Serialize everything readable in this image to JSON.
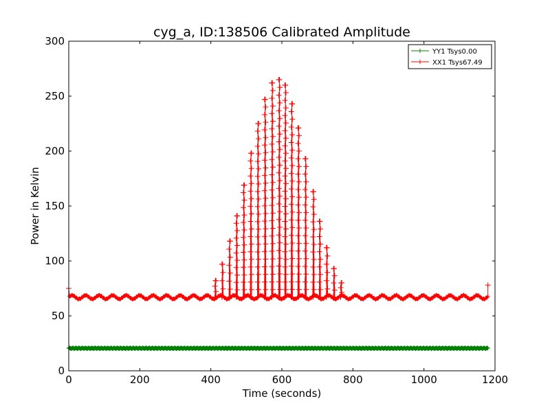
{
  "chart_data": {
    "type": "line",
    "title": "cyg_a, ID:138506 Calibrated Amplitude",
    "xlabel": "Time (seconds)",
    "ylabel": "Power in Kelvin",
    "xlim": [
      0,
      1200
    ],
    "ylim": [
      0,
      300
    ],
    "xticks": [
      0,
      200,
      400,
      600,
      800,
      1000,
      1200
    ],
    "yticks": [
      0,
      50,
      100,
      150,
      200,
      250,
      300
    ],
    "xtick_labels": [
      "0",
      "200",
      "400",
      "600",
      "800",
      "1000",
      "1200"
    ],
    "ytick_labels": [
      "0",
      "50",
      "100",
      "150",
      "200",
      "250",
      "300"
    ],
    "grid": false,
    "legend_position": "top-right",
    "marker": "+",
    "series": [
      {
        "name": "YY1 Tsys0.00",
        "color": "#008000",
        "x_start": 0,
        "x_end": 1180,
        "level": 20.5,
        "points": [
          [
            0,
            20.5
          ],
          [
            200,
            20.7
          ],
          [
            400,
            20.6
          ],
          [
            600,
            20.5
          ],
          [
            800,
            20.6
          ],
          [
            1000,
            20.5
          ],
          [
            1180,
            20.6
          ]
        ]
      },
      {
        "name": "XX1 Tsys67.49",
        "color": "#ff0000",
        "x_start": 0,
        "x_end": 1180,
        "baseline": 67,
        "start_value": 75,
        "end_value": 78,
        "peaks": [
          [
            413,
            82
          ],
          [
            433,
            97
          ],
          [
            453,
            118
          ],
          [
            473,
            141
          ],
          [
            493,
            169
          ],
          [
            513,
            198
          ],
          [
            533,
            225
          ],
          [
            553,
            247
          ],
          [
            573,
            262
          ],
          [
            593,
            265
          ],
          [
            610,
            260
          ],
          [
            628,
            243
          ],
          [
            647,
            221
          ],
          [
            667,
            193
          ],
          [
            689,
            163
          ],
          [
            707,
            136
          ],
          [
            727,
            112
          ],
          [
            747,
            93
          ],
          [
            767,
            80
          ]
        ]
      }
    ]
  }
}
